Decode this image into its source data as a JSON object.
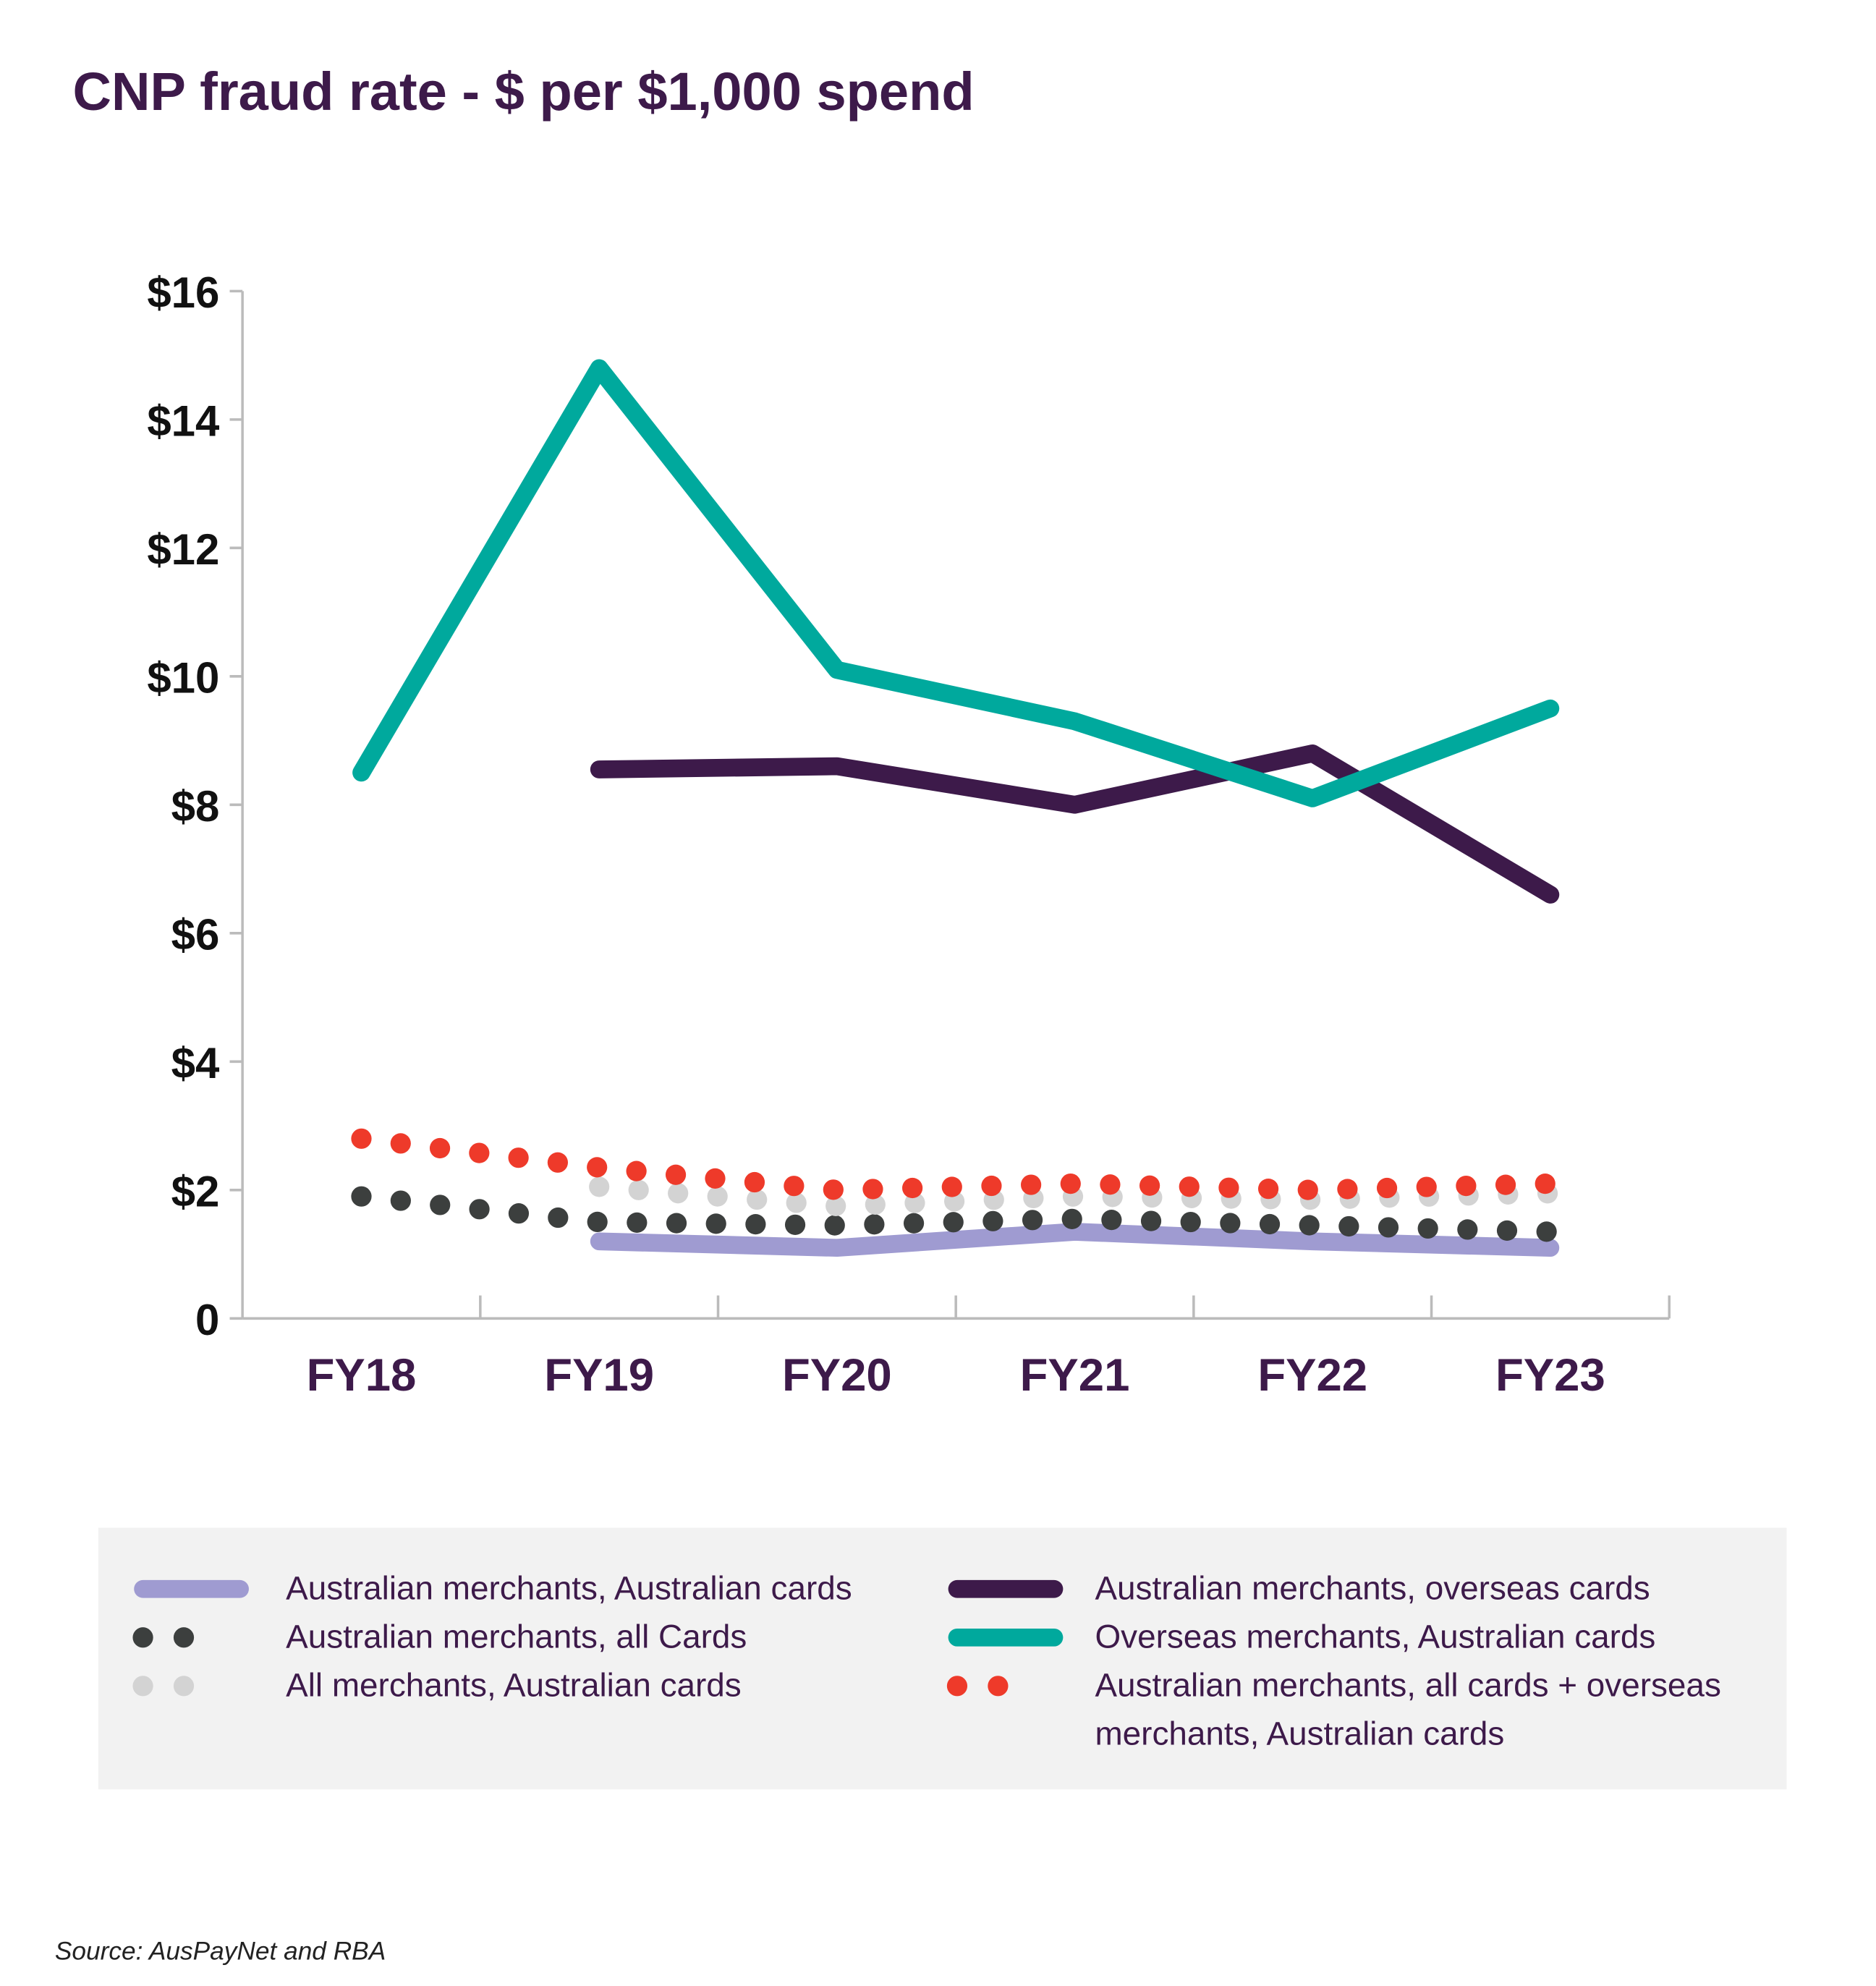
{
  "chart_data": {
    "type": "line",
    "title": "CNP fraud rate - $ per $1,000 spend",
    "source": "Source: AusPayNet and RBA",
    "categories": [
      "FY18",
      "FY19",
      "FY20",
      "FY21",
      "FY22",
      "FY23"
    ],
    "ylim": [
      0,
      16
    ],
    "yticks": [
      0,
      {
        "value": 2,
        "label": "$2"
      },
      {
        "value": 4,
        "label": "$4"
      },
      {
        "value": 6,
        "label": "$6"
      },
      {
        "value": 8,
        "label": "$8"
      },
      {
        "value": 10,
        "label": "$10"
      },
      {
        "value": 12,
        "label": "$12"
      },
      {
        "value": 14,
        "label": "$14"
      },
      {
        "value": 16,
        "label": "$16"
      }
    ],
    "grid": false,
    "series": [
      {
        "name": "Australian merchants, Australian cards",
        "color": "#9f9bd1",
        "style": "solid",
        "values": [
          null,
          1.2,
          1.1,
          1.35,
          1.2,
          1.1
        ]
      },
      {
        "name": "Australian merchants, all Cards",
        "color": "#3c3f3e",
        "style": "dotted",
        "values": [
          1.9,
          1.5,
          1.45,
          1.55,
          1.45,
          1.35
        ]
      },
      {
        "name": "All merchants, Australian cards",
        "color": "#d3d3d3",
        "style": "dotted",
        "values": [
          null,
          2.05,
          1.75,
          1.9,
          1.85,
          1.95
        ]
      },
      {
        "name": "Australian merchants, overseas cards",
        "color": "#3d1a4a",
        "style": "solid",
        "values": [
          null,
          8.55,
          8.6,
          8.0,
          8.8,
          6.6
        ]
      },
      {
        "name": "Overseas merchants, Australian cards",
        "color": "#00a99d",
        "style": "solid",
        "values": [
          8.5,
          14.8,
          10.1,
          9.3,
          8.1,
          9.5
        ]
      },
      {
        "name": "Australian merchants, all cards + overseas merchants, Australian cards",
        "color": "#ee3a2a",
        "style": "dotted",
        "values": [
          2.8,
          2.35,
          2.0,
          2.1,
          2.0,
          2.1
        ]
      }
    ]
  }
}
